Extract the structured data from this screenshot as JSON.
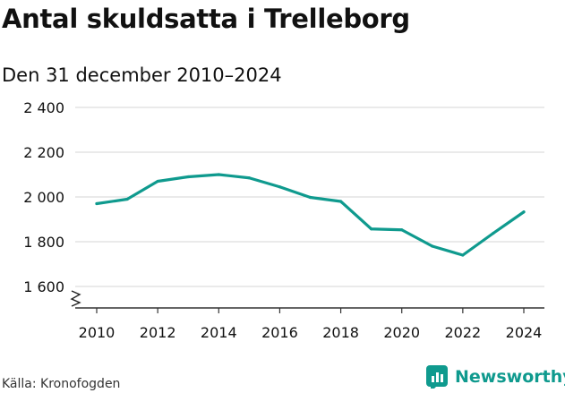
{
  "title": "Antal skuldsatta i Trelleborg",
  "subtitle": "Den 31 december 2010–2024",
  "source": "Källa: Kronofogden",
  "brand": {
    "name": "Newsworthy",
    "icon": "newsworthy-logo-icon"
  },
  "colors": {
    "line": "#0f9a8e",
    "grid": "#d6d6d6",
    "text": "#111111",
    "brand": "#0f9a8e"
  },
  "chart_data": {
    "type": "line",
    "title": "",
    "xlabel": "",
    "ylabel": "",
    "xlim": [
      2010,
      2024
    ],
    "ylim": [
      1500,
      2400
    ],
    "grid": true,
    "broken_axis": true,
    "yticks": [
      {
        "value": 1600,
        "label": "1 600"
      },
      {
        "value": 1800,
        "label": "1 800"
      },
      {
        "value": 2000,
        "label": "2 000"
      },
      {
        "value": 2200,
        "label": "2 200"
      },
      {
        "value": 2400,
        "label": "2 400"
      }
    ],
    "xticks": [
      2010,
      2012,
      2014,
      2016,
      2018,
      2020,
      2022,
      2024
    ],
    "series": [
      {
        "x": [
          2010,
          2011,
          2012,
          2013,
          2014,
          2015,
          2016,
          2017,
          2018,
          2019,
          2020,
          2021,
          2022,
          2023,
          2024
        ],
        "values": [
          1970,
          1990,
          2070,
          2090,
          2100,
          2085,
          2045,
          1998,
          1980,
          1857,
          1853,
          1780,
          1740,
          1838,
          1933
        ]
      }
    ]
  }
}
